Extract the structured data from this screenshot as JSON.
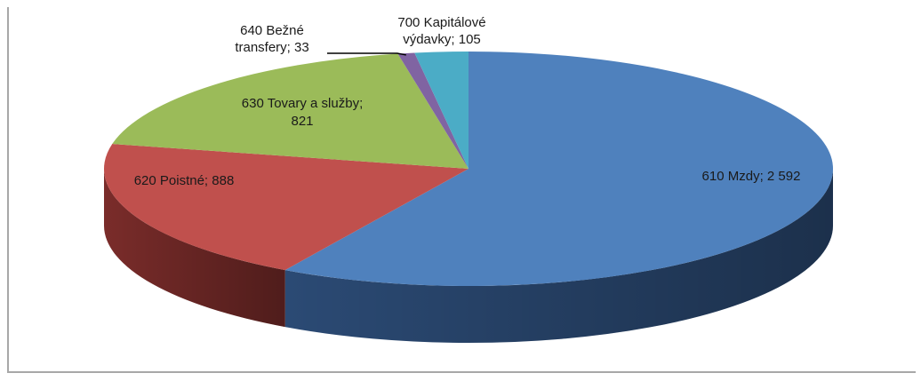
{
  "chart_data": {
    "type": "pie",
    "title": "",
    "slices": [
      {
        "line1": "610 Mzdy; 2 592",
        "line2": "",
        "category": "610 Mzdy",
        "value": 2592,
        "color": "#4f81bd",
        "sideColor": "#2b4a74"
      },
      {
        "line1": "620 Poistné; 888",
        "line2": "",
        "category": "620 Poistné",
        "value": 888,
        "color": "#c0504d",
        "sideColor": "#7a2c2a"
      },
      {
        "line1": "630 Tovary a služby;",
        "line2": "821",
        "category": "630 Tovary a služby",
        "value": 821,
        "color": "#9bbb59",
        "sideColor": "#5f7632"
      },
      {
        "line1": "640 Bežné",
        "line2": "transfery; 33",
        "category": "640 Bežné transfery",
        "value": 33,
        "color": "#8064a2",
        "sideColor": "#4c3a63"
      },
      {
        "line1": "700 Kapitálové",
        "line2": "výdavky; 105",
        "category": "700 Kapitálové výdavky",
        "value": 105,
        "color": "#4bacc6",
        "sideColor": "#2a6877"
      }
    ],
    "legend": "none",
    "style": "3d"
  }
}
